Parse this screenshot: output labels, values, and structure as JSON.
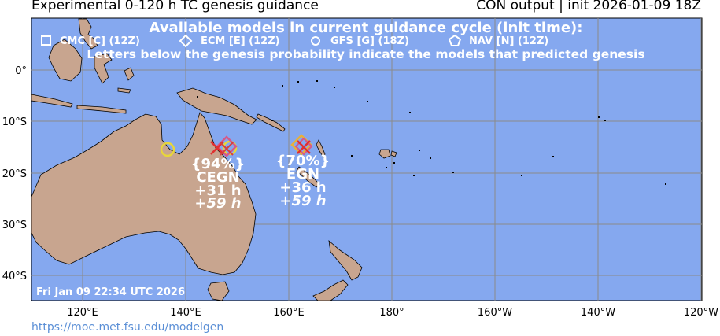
{
  "title_left": "Experimental 0-120 h TC genesis guidance",
  "title_right": "CON output | init 2026-01-09 18Z",
  "header": {
    "line1": "Available models in current guidance cycle (init time):",
    "models": [
      {
        "symbol": "square",
        "label": "CMC [C] (12Z)"
      },
      {
        "symbol": "diamond",
        "label": "ECM [E] (12Z)"
      },
      {
        "symbol": "circle",
        "label": "GFS [G] (18Z)"
      },
      {
        "symbol": "pentagon",
        "label": "NAV [N] (12Z)"
      }
    ],
    "line3": "Letters below the genesis probability indicate the models that predicted genesis"
  },
  "lat_labels": [
    "0°",
    "10°S",
    "20°S",
    "30°S",
    "40°S"
  ],
  "lon_labels": [
    "120°E",
    "140°E",
    "160°E",
    "180°",
    "160°W",
    "140°W",
    "120°W"
  ],
  "genesis_areas": [
    {
      "lon": 147.5,
      "lat": -15.5,
      "probability": "{94%}",
      "models": "CEGN",
      "time1": "+31 h",
      "time2": "+59 h"
    },
    {
      "lon": 162.5,
      "lat": -15.0,
      "probability": "{70%}",
      "models": "EGN",
      "time1": "+36 h",
      "time2": "+59 h"
    }
  ],
  "timestamp": "Fri Jan 09 22:34 UTC 2026",
  "footer_url": "https://moe.met.fsu.edu/modelgen",
  "colors": {
    "ocean": "#85a8ef",
    "land": "#c8a58f",
    "grid": "#8a8a8a",
    "overlay_text": "#ffffff",
    "cmc": "#e8e83a",
    "ecm": "#d45a8a",
    "gfs": "#e8d63a",
    "nav_x": "#e03030"
  }
}
